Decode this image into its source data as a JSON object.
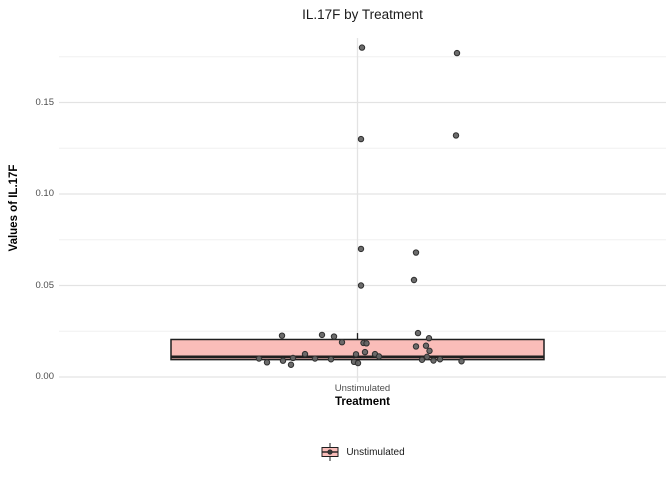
{
  "colors": {
    "box_fill": "#FABDB9",
    "box_stroke": "#1F1F1F",
    "point_fill": "#646464",
    "point_stroke": "#2E2E2E",
    "grid_major": "#E3E3E3",
    "grid_minor": "#F0F0F0",
    "tick_text": "#4D4D4D"
  },
  "chart_data": {
    "type": "boxplot",
    "title": "IL.17F by Treatment",
    "xlabel": "Treatment",
    "ylabel": "Values of IL.17F",
    "categories": [
      "Unstimulated"
    ],
    "ylim": [
      0,
      0.1885
    ],
    "grid": true,
    "y_major_ticks": [
      0,
      0.05,
      0.1,
      0.15
    ],
    "y_tick_labels": [
      "0.00",
      "0.05",
      "0.10",
      "0.15"
    ],
    "y_minor_ticks": [
      0.025,
      0.075,
      0.125,
      0.175
    ],
    "legend": {
      "position": "bottom",
      "entries": [
        {
          "label": "Unstimulated",
          "fill": "#FABDB9"
        }
      ]
    },
    "box": {
      "category": "Unstimulated",
      "q1": 0.0095,
      "median": 0.011,
      "q3": 0.0205,
      "whisker_low": 0.0065,
      "whisker_high": 0.024
    },
    "points_note": "jittered observations: [x_offset_px_from_category_center, value]",
    "points": [
      [
        4.5,
        0.18
      ],
      [
        99.5,
        0.177
      ],
      [
        98.5,
        0.132
      ],
      [
        3.5,
        0.13
      ],
      [
        3.5,
        0.07
      ],
      [
        58.5,
        0.068
      ],
      [
        56.5,
        0.053
      ],
      [
        3.5,
        0.05
      ],
      [
        -75.5,
        0.0226
      ],
      [
        -35.5,
        0.023
      ],
      [
        -23.5,
        0.0221
      ],
      [
        -15.5,
        0.019
      ],
      [
        6.0,
        0.0186
      ],
      [
        9.0,
        0.0184
      ],
      [
        60.5,
        0.024
      ],
      [
        71.5,
        0.0212
      ],
      [
        58.5,
        0.0167
      ],
      [
        68.5,
        0.0171
      ],
      [
        72.0,
        0.0143
      ],
      [
        7.5,
        0.0136
      ],
      [
        17.5,
        0.0125
      ],
      [
        -52.5,
        0.0125
      ],
      [
        -1.5,
        0.0124
      ],
      [
        21.5,
        0.0112
      ],
      [
        69.5,
        0.011
      ],
      [
        -64.5,
        0.0104
      ],
      [
        -98.5,
        0.0101
      ],
      [
        -42.5,
        0.0101
      ],
      [
        -26.5,
        0.0097
      ],
      [
        -74.5,
        0.0089
      ],
      [
        -3.5,
        0.0083
      ],
      [
        82.5,
        0.0097
      ],
      [
        76.0,
        0.009
      ],
      [
        104.0,
        0.0086
      ],
      [
        64.5,
        0.0094
      ],
      [
        -90.5,
        0.008
      ],
      [
        0.5,
        0.0076
      ],
      [
        -66.5,
        0.0067
      ]
    ]
  }
}
